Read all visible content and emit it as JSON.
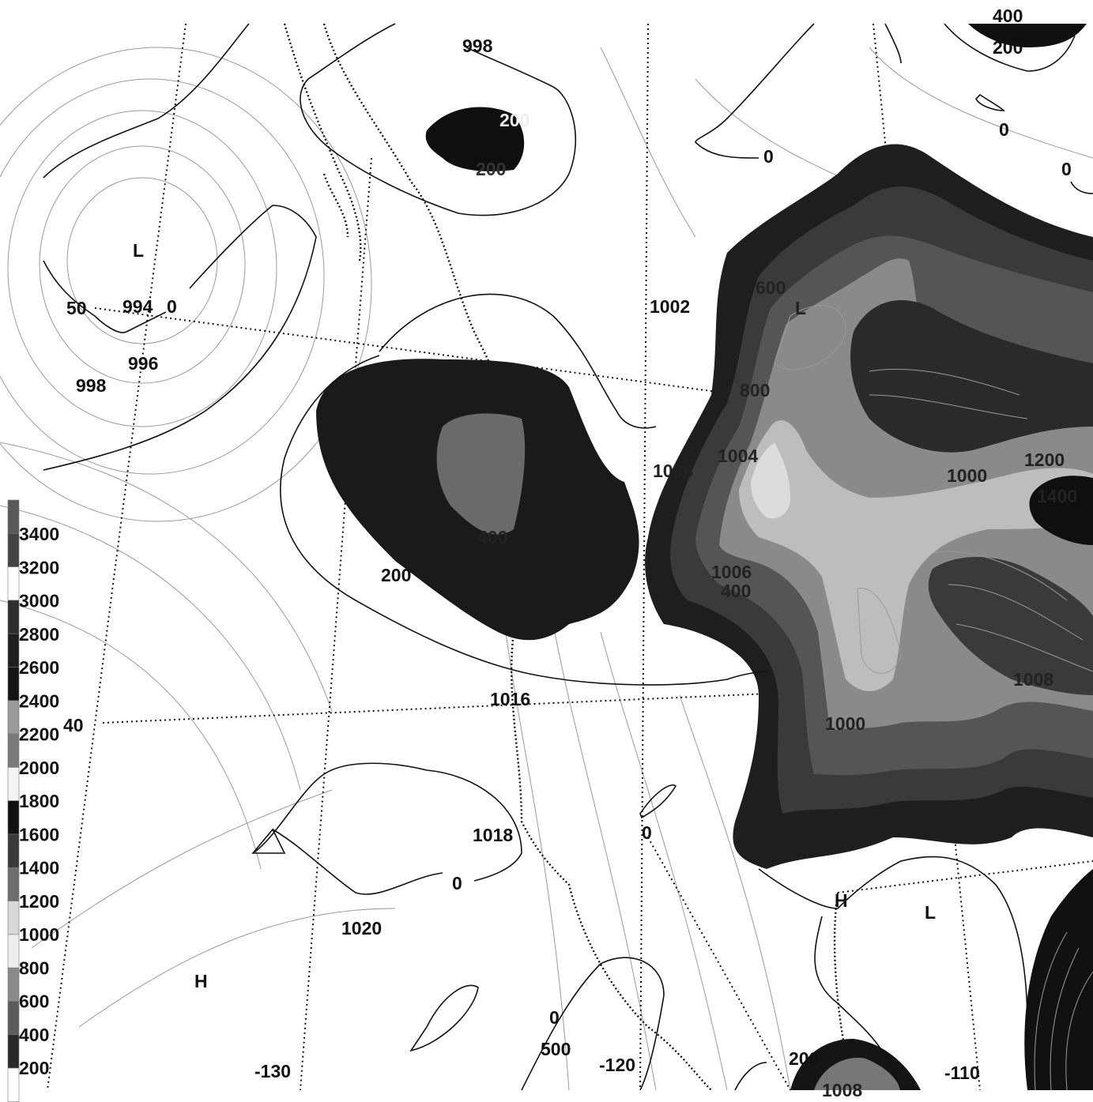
{
  "legend": {
    "levels": [
      "3400",
      "3200",
      "3000",
      "2800",
      "2600",
      "2400",
      "2200",
      "2000",
      "1800",
      "1600",
      "1400",
      "1200",
      "1000",
      "800",
      "600",
      "400",
      "200"
    ],
    "swatches": [
      {
        "color": "#5a5a5a"
      },
      {
        "color": "#444444"
      },
      {
        "color": "#ffffff"
      },
      {
        "color": "#2e2e2e"
      },
      {
        "color": "#1f1f1f"
      },
      {
        "color": "#151515"
      },
      {
        "color": "#9a9a9a"
      },
      {
        "color": "#7a7a7a"
      },
      {
        "color": "#f4f4f4"
      },
      {
        "color": "#111111"
      },
      {
        "color": "#3a3a3a"
      },
      {
        "color": "#6e6e6e"
      },
      {
        "color": "#d8d8d8"
      },
      {
        "color": "#ededed"
      },
      {
        "color": "#8a8a8a"
      },
      {
        "color": "#5c5c5c"
      },
      {
        "color": "#2a2a2a"
      },
      {
        "color": "#ffffff"
      }
    ]
  },
  "pressure_labels": [
    "998",
    "994",
    "996",
    "998",
    "1002",
    "1016",
    "1018",
    "1020",
    "1000",
    "1004",
    "1008",
    "1006",
    "1008",
    "1000",
    "1008"
  ],
  "height_labels": [
    "400",
    "200",
    "0",
    "0",
    "0",
    "50",
    "0",
    "600",
    "800",
    "1200",
    "1400",
    "200",
    "400",
    "400",
    "0",
    "0",
    "0",
    "200",
    "200",
    "200",
    "500"
  ],
  "systems": [
    "L",
    "L",
    "H",
    "H",
    "L"
  ],
  "graticule_labels": {
    "lat": "40",
    "lon_west": "-130",
    "lon_mid": "-120",
    "lon_east": "-110"
  },
  "colors": {
    "dark": "#111111",
    "mid": "#555555",
    "light": "#bdbdbd",
    "lightest": "#dcdcdc"
  }
}
